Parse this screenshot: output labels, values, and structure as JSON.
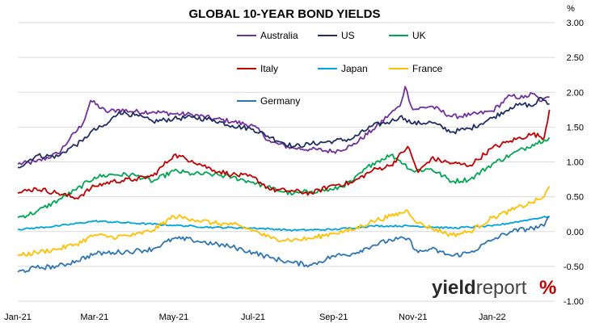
{
  "chart_data": {
    "type": "line",
    "title": "GLOBAL 10-YEAR BOND YIELDS",
    "y_unit": "%",
    "ylim": [
      -1.0,
      3.0
    ],
    "yticks": [
      3.0,
      2.5,
      2.0,
      1.5,
      1.0,
      0.5,
      0.0,
      -0.5,
      -1.0
    ],
    "ytick_labels": [
      "3.00",
      "2.50",
      "2.00",
      "1.50",
      "1.00",
      "0.50",
      "0.00",
      "-0.50",
      "-1.00"
    ],
    "xlim": [
      "2021-01-01",
      "2022-02-18"
    ],
    "xticks": [
      "2021-01-01",
      "2021-03-01",
      "2021-05-01",
      "2021-07-01",
      "2021-09-01",
      "2021-11-01",
      "2022-01-01"
    ],
    "xtick_labels": [
      "Jan-21",
      "Mar-21",
      "May-21",
      "Jul-21",
      "Sep-21",
      "Nov-21",
      "Jan-22"
    ],
    "grid": "horizontal",
    "legend_position": "top-left",
    "watermark": "yieldreport %",
    "series": [
      {
        "name": "Australia",
        "color": "#7030a0",
        "x": [
          "2021-01-01",
          "2021-01-15",
          "2021-02-01",
          "2021-02-10",
          "2021-02-20",
          "2021-02-26",
          "2021-03-10",
          "2021-03-20",
          "2021-04-01",
          "2021-04-15",
          "2021-05-01",
          "2021-05-15",
          "2021-06-01",
          "2021-06-15",
          "2021-07-01",
          "2021-07-15",
          "2021-08-01",
          "2021-08-15",
          "2021-09-01",
          "2021-09-15",
          "2021-10-01",
          "2021-10-15",
          "2021-10-22",
          "2021-10-26",
          "2021-11-01",
          "2021-11-15",
          "2021-12-01",
          "2021-12-15",
          "2022-01-01",
          "2022-01-15",
          "2022-01-25",
          "2022-02-01",
          "2022-02-08",
          "2022-02-14"
        ],
        "y": [
          0.97,
          1.0,
          1.12,
          1.33,
          1.55,
          1.88,
          1.72,
          1.75,
          1.72,
          1.72,
          1.69,
          1.68,
          1.62,
          1.58,
          1.52,
          1.28,
          1.2,
          1.18,
          1.15,
          1.23,
          1.46,
          1.7,
          1.8,
          2.08,
          1.75,
          1.8,
          1.65,
          1.67,
          1.73,
          1.95,
          1.92,
          1.98,
          1.87,
          1.93
        ]
      },
      {
        "name": "US",
        "color": "#1f2f63",
        "x": [
          "2021-01-01",
          "2021-01-15",
          "2021-02-01",
          "2021-02-10",
          "2021-02-20",
          "2021-02-26",
          "2021-03-10",
          "2021-03-20",
          "2021-04-01",
          "2021-04-15",
          "2021-05-01",
          "2021-05-15",
          "2021-06-01",
          "2021-06-15",
          "2021-07-01",
          "2021-07-15",
          "2021-08-01",
          "2021-08-15",
          "2021-09-01",
          "2021-09-15",
          "2021-10-01",
          "2021-10-15",
          "2021-10-22",
          "2021-10-26",
          "2021-11-01",
          "2021-11-15",
          "2021-12-01",
          "2021-12-15",
          "2022-01-01",
          "2022-01-15",
          "2022-01-25",
          "2022-02-01",
          "2022-02-08",
          "2022-02-14"
        ],
        "y": [
          0.92,
          1.09,
          1.08,
          1.2,
          1.3,
          1.43,
          1.53,
          1.72,
          1.67,
          1.58,
          1.62,
          1.64,
          1.6,
          1.52,
          1.47,
          1.35,
          1.22,
          1.26,
          1.3,
          1.33,
          1.52,
          1.58,
          1.65,
          1.62,
          1.55,
          1.57,
          1.43,
          1.48,
          1.63,
          1.78,
          1.83,
          1.8,
          1.92,
          1.83
        ]
      },
      {
        "name": "UK",
        "color": "#00a651",
        "x": [
          "2021-01-01",
          "2021-01-15",
          "2021-02-01",
          "2021-02-15",
          "2021-03-01",
          "2021-03-15",
          "2021-04-01",
          "2021-04-15",
          "2021-05-01",
          "2021-05-15",
          "2021-06-01",
          "2021-06-15",
          "2021-07-01",
          "2021-07-15",
          "2021-08-01",
          "2021-08-15",
          "2021-09-01",
          "2021-09-15",
          "2021-10-01",
          "2021-10-15",
          "2021-10-22",
          "2021-11-01",
          "2021-11-15",
          "2021-12-01",
          "2021-12-15",
          "2022-01-01",
          "2022-01-15",
          "2022-02-01",
          "2022-02-10",
          "2022-02-14"
        ],
        "y": [
          0.2,
          0.28,
          0.45,
          0.6,
          0.78,
          0.82,
          0.81,
          0.72,
          0.87,
          0.83,
          0.82,
          0.78,
          0.71,
          0.62,
          0.54,
          0.58,
          0.6,
          0.72,
          0.98,
          1.1,
          1.02,
          0.87,
          0.9,
          0.72,
          0.75,
          0.97,
          1.1,
          1.25,
          1.32,
          1.35
        ]
      },
      {
        "name": "Italy",
        "color": "#c00000",
        "x": [
          "2021-01-01",
          "2021-01-15",
          "2021-02-01",
          "2021-02-15",
          "2021-03-01",
          "2021-03-15",
          "2021-04-01",
          "2021-04-15",
          "2021-05-01",
          "2021-05-15",
          "2021-06-01",
          "2021-06-15",
          "2021-07-01",
          "2021-07-15",
          "2021-08-01",
          "2021-08-15",
          "2021-09-01",
          "2021-09-15",
          "2021-10-01",
          "2021-10-15",
          "2021-10-28",
          "2021-11-05",
          "2021-11-15",
          "2021-12-01",
          "2021-12-15",
          "2022-01-01",
          "2022-01-15",
          "2022-02-01",
          "2022-02-10",
          "2022-02-14"
        ],
        "y": [
          0.55,
          0.62,
          0.55,
          0.48,
          0.65,
          0.72,
          0.75,
          0.8,
          1.1,
          1.02,
          0.88,
          0.82,
          0.78,
          0.6,
          0.58,
          0.55,
          0.67,
          0.7,
          0.88,
          0.95,
          1.22,
          0.85,
          1.05,
          0.98,
          0.95,
          1.2,
          1.3,
          1.4,
          1.35,
          1.75
        ]
      },
      {
        "name": "Japan",
        "color": "#00a3e0",
        "x": [
          "2021-01-01",
          "2021-02-01",
          "2021-03-01",
          "2021-04-01",
          "2021-05-01",
          "2021-06-01",
          "2021-07-01",
          "2021-08-01",
          "2021-09-01",
          "2021-10-01",
          "2021-11-01",
          "2021-12-01",
          "2022-01-01",
          "2022-01-20",
          "2022-02-01",
          "2022-02-14"
        ],
        "y": [
          0.03,
          0.08,
          0.15,
          0.12,
          0.09,
          0.06,
          0.05,
          0.02,
          0.03,
          0.08,
          0.08,
          0.05,
          0.08,
          0.14,
          0.18,
          0.22
        ]
      },
      {
        "name": "France",
        "color": "#ffc000",
        "x": [
          "2021-01-01",
          "2021-01-15",
          "2021-02-01",
          "2021-02-15",
          "2021-03-01",
          "2021-03-15",
          "2021-04-01",
          "2021-04-15",
          "2021-05-01",
          "2021-05-15",
          "2021-06-01",
          "2021-06-15",
          "2021-07-01",
          "2021-07-15",
          "2021-08-01",
          "2021-08-15",
          "2021-09-01",
          "2021-09-15",
          "2021-10-01",
          "2021-10-15",
          "2021-10-28",
          "2021-11-05",
          "2021-11-15",
          "2021-12-01",
          "2021-12-15",
          "2022-01-01",
          "2022-01-15",
          "2022-02-01",
          "2022-02-10",
          "2022-02-14"
        ],
        "y": [
          -0.35,
          -0.3,
          -0.25,
          -0.18,
          -0.05,
          -0.08,
          -0.05,
          0.02,
          0.22,
          0.18,
          0.12,
          0.1,
          0.02,
          -0.1,
          -0.12,
          -0.1,
          -0.02,
          0.02,
          0.15,
          0.22,
          0.3,
          0.12,
          0.05,
          -0.05,
          0.0,
          0.2,
          0.3,
          0.42,
          0.5,
          0.65
        ]
      },
      {
        "name": "Germany",
        "color": "#2e75b6",
        "x": [
          "2021-01-01",
          "2021-01-15",
          "2021-02-01",
          "2021-02-15",
          "2021-03-01",
          "2021-03-15",
          "2021-04-01",
          "2021-04-15",
          "2021-05-01",
          "2021-05-15",
          "2021-06-01",
          "2021-06-15",
          "2021-07-01",
          "2021-07-15",
          "2021-08-01",
          "2021-08-15",
          "2021-09-01",
          "2021-09-15",
          "2021-10-01",
          "2021-10-15",
          "2021-10-28",
          "2021-11-05",
          "2021-11-15",
          "2021-12-01",
          "2021-12-15",
          "2022-01-01",
          "2022-01-15",
          "2022-02-01",
          "2022-02-10",
          "2022-02-14"
        ],
        "y": [
          -0.58,
          -0.52,
          -0.5,
          -0.42,
          -0.32,
          -0.3,
          -0.28,
          -0.25,
          -0.1,
          -0.12,
          -0.18,
          -0.22,
          -0.3,
          -0.38,
          -0.45,
          -0.48,
          -0.35,
          -0.32,
          -0.2,
          -0.12,
          -0.1,
          -0.3,
          -0.25,
          -0.35,
          -0.3,
          -0.12,
          0.0,
          0.05,
          0.08,
          0.22
        ]
      }
    ]
  }
}
